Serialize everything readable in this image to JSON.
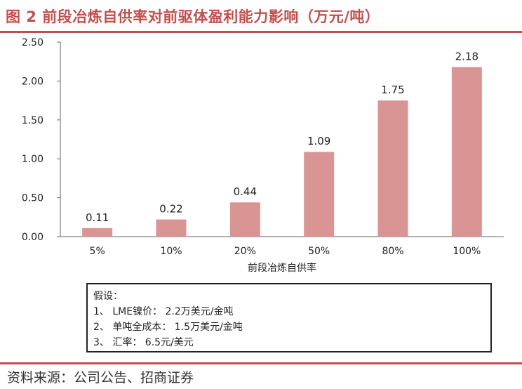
{
  "title": "图 2  前段冶炼自供率对前驱体盈利能力影响（万元/吨）",
  "chart_data": {
    "type": "bar",
    "categories": [
      "5%",
      "10%",
      "20%",
      "50%",
      "80%",
      "100%"
    ],
    "values": [
      0.11,
      0.22,
      0.44,
      1.09,
      1.75,
      2.18
    ],
    "value_labels": [
      "0.11",
      "0.22",
      "0.44",
      "1.09",
      "1.75",
      "2.18"
    ],
    "xlabel": "前段冶炼自供率",
    "ylabel": "",
    "ylim": [
      0,
      2.5
    ],
    "yticks": [
      0,
      0.5,
      1.0,
      1.5,
      2.0,
      2.5
    ],
    "ytick_labels": [
      "0.00",
      "0.50",
      "1.00",
      "1.50",
      "2.00",
      "2.50"
    ],
    "bar_color": "#d99594",
    "grid": false,
    "legend": "none"
  },
  "assumptions": {
    "heading": "假设：",
    "items": [
      "1、 LME镍价： 2.2万美元/金吨",
      "2、 单吨全成本： 1.5万美元/金吨",
      "3、 汇率： 6.5元/美元"
    ]
  },
  "source": "资料来源：公司公告、招商证券",
  "colors": {
    "accent": "#c0504d"
  }
}
